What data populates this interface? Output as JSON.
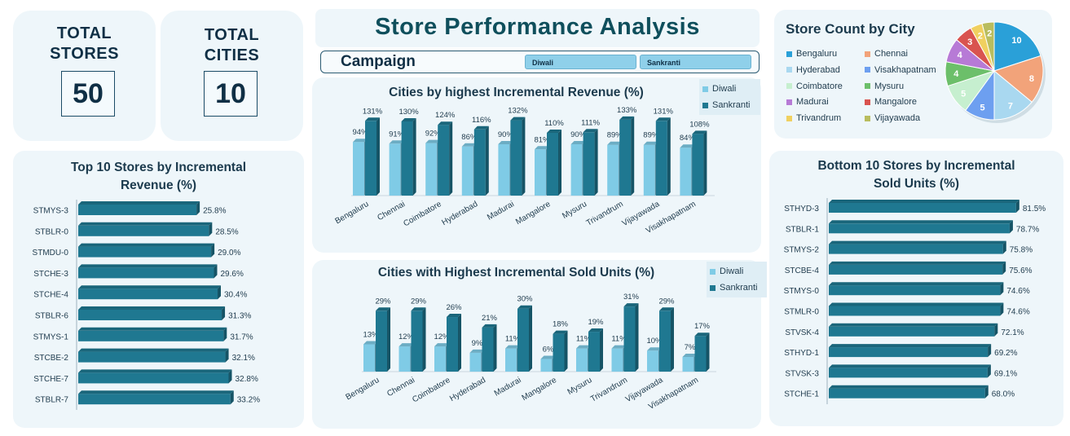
{
  "kpis": {
    "stores": {
      "title_l1": "TOTAL",
      "title_l2": "STORES",
      "value": "50"
    },
    "cities": {
      "title_l1": "TOTAL",
      "title_l2": "CITIES",
      "value": "10"
    }
  },
  "header": {
    "title": "Store Performance Analysis",
    "campaign_label": "Campaign",
    "campaign_options": [
      "Diwali",
      "Sankranti"
    ]
  },
  "colors": {
    "diwali": "#7fcbe6",
    "sankranti": "#1f7891",
    "bar": "#1f7891"
  },
  "chart_data": [
    {
      "id": "top10",
      "type": "bar",
      "orientation": "horizontal",
      "title_l1": "Top 10 Stores by Incremental",
      "title_l2": "Revenue (%)",
      "categories": [
        "STMYS-3",
        "STBLR-0",
        "STMDU-0",
        "STCHE-3",
        "STCHE-4",
        "STBLR-6",
        "STMYS-1",
        "STCBE-2",
        "STCHE-7",
        "STBLR-7"
      ],
      "values": [
        25.8,
        28.5,
        29.0,
        29.6,
        30.4,
        31.3,
        31.7,
        32.1,
        32.8,
        33.2
      ],
      "labels": [
        "25.8%",
        "28.5%",
        "29.0%",
        "29.6%",
        "30.4%",
        "31.3%",
        "31.7%",
        "32.1%",
        "32.8%",
        "33.2%"
      ],
      "xlim": [
        0,
        40
      ]
    },
    {
      "id": "revenue",
      "type": "bar",
      "title": "Cities by highest Incremental Revenue (%)",
      "categories": [
        "Bengaluru",
        "Chennai",
        "Coimbatore",
        "Hyderabad",
        "Madurai",
        "Mangalore",
        "Mysuru",
        "Trivandrum",
        "Vijayawada",
        "Visakhapatnam"
      ],
      "series": [
        {
          "name": "Diwali",
          "values": [
            94,
            91,
            92,
            86,
            90,
            81,
            90,
            89,
            89,
            84
          ],
          "labels": [
            "94%",
            "91%",
            "92%",
            "86%",
            "90%",
            "81%",
            "90%",
            "89%",
            "89%",
            "84%"
          ]
        },
        {
          "name": "Sankranti",
          "values": [
            131,
            130,
            124,
            116,
            132,
            110,
            111,
            133,
            131,
            108
          ],
          "labels": [
            "131%",
            "130%",
            "124%",
            "116%",
            "132%",
            "110%",
            "111%",
            "133%",
            "131%",
            "108%"
          ]
        }
      ],
      "ylim": [
        0,
        140
      ]
    },
    {
      "id": "units",
      "type": "bar",
      "title": "Cities with Highest Incremental Sold Units (%)",
      "categories": [
        "Bengaluru",
        "Chennai",
        "Coimbatore",
        "Hyderabad",
        "Madurai",
        "Mangalore",
        "Mysuru",
        "Trivandrum",
        "Vijayawada",
        "Visakhapatnam"
      ],
      "series": [
        {
          "name": "Diwali",
          "values": [
            13,
            12,
            12,
            9,
            11,
            6,
            11,
            11,
            10,
            7
          ],
          "labels": [
            "13%",
            "12%",
            "12%",
            "9%",
            "11%",
            "6%",
            "11%",
            "11%",
            "10%",
            "7%"
          ]
        },
        {
          "name": "Sankranti",
          "values": [
            29,
            29,
            26,
            21,
            30,
            18,
            19,
            31,
            29,
            17
          ],
          "labels": [
            "29%",
            "29%",
            "26%",
            "21%",
            "30%",
            "18%",
            "19%",
            "31%",
            "29%",
            "17%"
          ]
        }
      ],
      "ylim": [
        0,
        33
      ]
    },
    {
      "id": "citycount",
      "type": "pie",
      "title": "Store Count by City",
      "categories": [
        "Bengaluru",
        "Chennai",
        "Hyderabad",
        "Visakhapatnam",
        "Coimbatore",
        "Mysuru",
        "Madurai",
        "Mangalore",
        "Trivandrum",
        "Vijayawada"
      ],
      "values": [
        10,
        8,
        7,
        5,
        5,
        4,
        4,
        3,
        2,
        2
      ],
      "colors": [
        "#2aa0d8",
        "#f2a37a",
        "#a9d8f0",
        "#6d9ff0",
        "#c6efcf",
        "#6cbf6a",
        "#b77ad6",
        "#d9534f",
        "#f0d060",
        "#b9bd5e"
      ]
    },
    {
      "id": "bottom10",
      "type": "bar",
      "orientation": "horizontal",
      "title_l1": "Bottom 10 Stores by Incremental",
      "title_l2": "Sold Units (%)",
      "categories": [
        "STHYD-3",
        "STBLR-1",
        "STMYS-2",
        "STCBE-4",
        "STMYS-0",
        "STMLR-0",
        "STVSK-4",
        "STHYD-1",
        "STVSK-3",
        "STCHE-1"
      ],
      "values": [
        81.5,
        78.7,
        75.8,
        75.6,
        74.6,
        74.6,
        72.1,
        69.2,
        69.1,
        68.0
      ],
      "labels": [
        "81.5%",
        "78.7%",
        "75.8%",
        "75.6%",
        "74.6%",
        "74.6%",
        "72.1%",
        "69.2%",
        "69.1%",
        "68.0%"
      ],
      "xlim": [
        0,
        100
      ]
    }
  ]
}
